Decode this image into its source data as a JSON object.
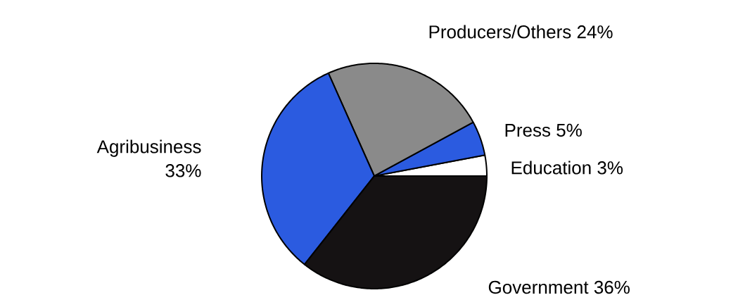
{
  "chart_data": {
    "type": "pie",
    "categories": [
      "Education",
      "Press",
      "Producers/Others",
      "Agribusiness",
      "Government"
    ],
    "values": [
      3,
      5,
      24,
      33,
      36
    ],
    "value_labels": [
      "3%",
      "5%",
      "24%",
      "33%",
      "36%"
    ],
    "colors": [
      "#ffffff",
      "#2b5be0",
      "#8a8a8a",
      "#2b5be0",
      "#151213"
    ]
  }
}
